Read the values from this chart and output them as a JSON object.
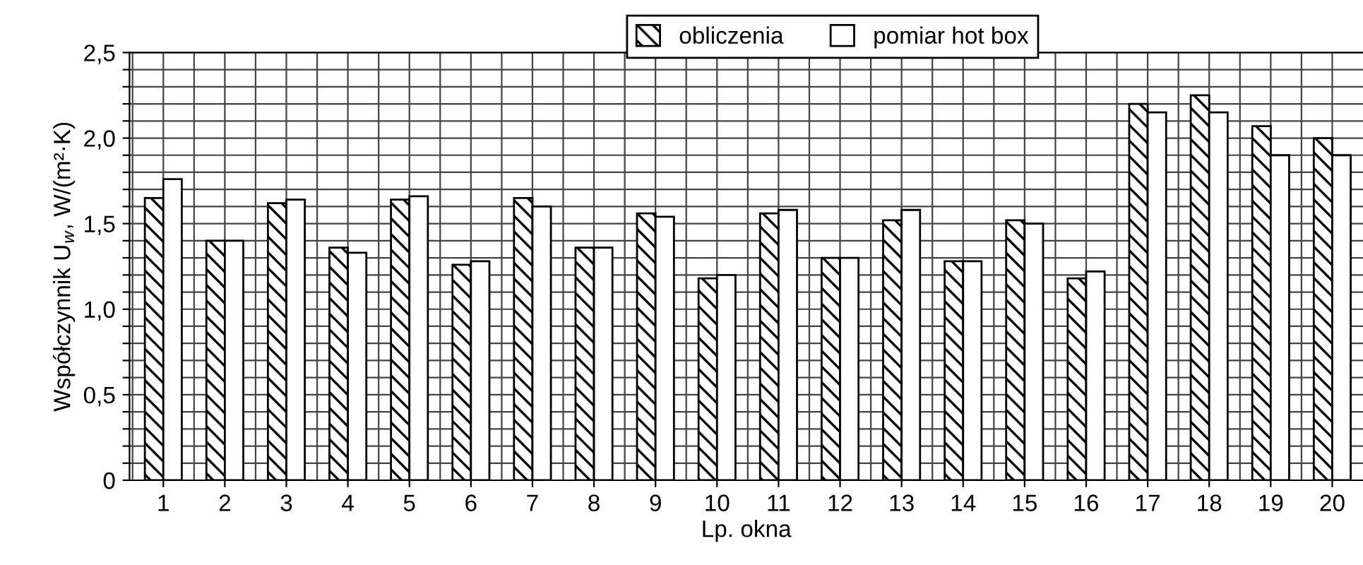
{
  "chart_data": {
    "type": "bar",
    "xlabel": "Lp. okna",
    "ylabel": "Współczynnik U$_{w}$, W/(m²·K)",
    "categories": [
      "1",
      "2",
      "3",
      "4",
      "5",
      "6",
      "7",
      "8",
      "9",
      "10",
      "11",
      "12",
      "13",
      "14",
      "15",
      "16",
      "17",
      "18",
      "19",
      "20"
    ],
    "series": [
      {
        "name": "obliczenia",
        "color": "#000000",
        "values": [
          1.65,
          1.4,
          1.62,
          1.36,
          1.64,
          1.26,
          1.65,
          1.36,
          1.56,
          1.18,
          1.56,
          1.3,
          1.52,
          1.28,
          1.52,
          1.18,
          2.2,
          2.25,
          2.07,
          2.0
        ]
      },
      {
        "name": "pomiar hot box",
        "color": "#ffffff",
        "values": [
          1.76,
          1.4,
          1.64,
          1.33,
          1.66,
          1.28,
          1.6,
          1.36,
          1.54,
          1.2,
          1.58,
          1.3,
          1.58,
          1.28,
          1.5,
          1.22,
          2.15,
          2.15,
          1.9,
          1.9
        ]
      }
    ],
    "ylim": [
      0,
      2.5
    ],
    "yticks": [
      {
        "value": 0,
        "label": "0"
      },
      {
        "value": 0.1,
        "label": null
      },
      {
        "value": 0.2,
        "label": null
      },
      {
        "value": 0.3,
        "label": null
      },
      {
        "value": 0.4,
        "label": null
      },
      {
        "value": 0.5,
        "label": "0,5"
      },
      {
        "value": 0.6,
        "label": null
      },
      {
        "value": 0.7,
        "label": null
      },
      {
        "value": 0.8,
        "label": null
      },
      {
        "value": 0.9,
        "label": null
      },
      {
        "value": 1.0,
        "label": "1,0"
      },
      {
        "value": 1.1,
        "label": null
      },
      {
        "value": 1.2,
        "label": null
      },
      {
        "value": 1.3,
        "label": null
      },
      {
        "value": 1.4,
        "label": null
      },
      {
        "value": 1.5,
        "label": "1,5"
      },
      {
        "value": 1.6,
        "label": null
      },
      {
        "value": 1.7,
        "label": null
      },
      {
        "value": 1.8,
        "label": null
      },
      {
        "value": 1.9,
        "label": null
      },
      {
        "value": 2.0,
        "label": "2,0"
      },
      {
        "value": 2.1,
        "label": null
      },
      {
        "value": 2.2,
        "label": null
      },
      {
        "value": 2.3,
        "label": null
      },
      {
        "value": 2.4,
        "label": null
      },
      {
        "value": 2.5,
        "label": "2,5"
      }
    ],
    "grid": true,
    "legend": "top"
  }
}
